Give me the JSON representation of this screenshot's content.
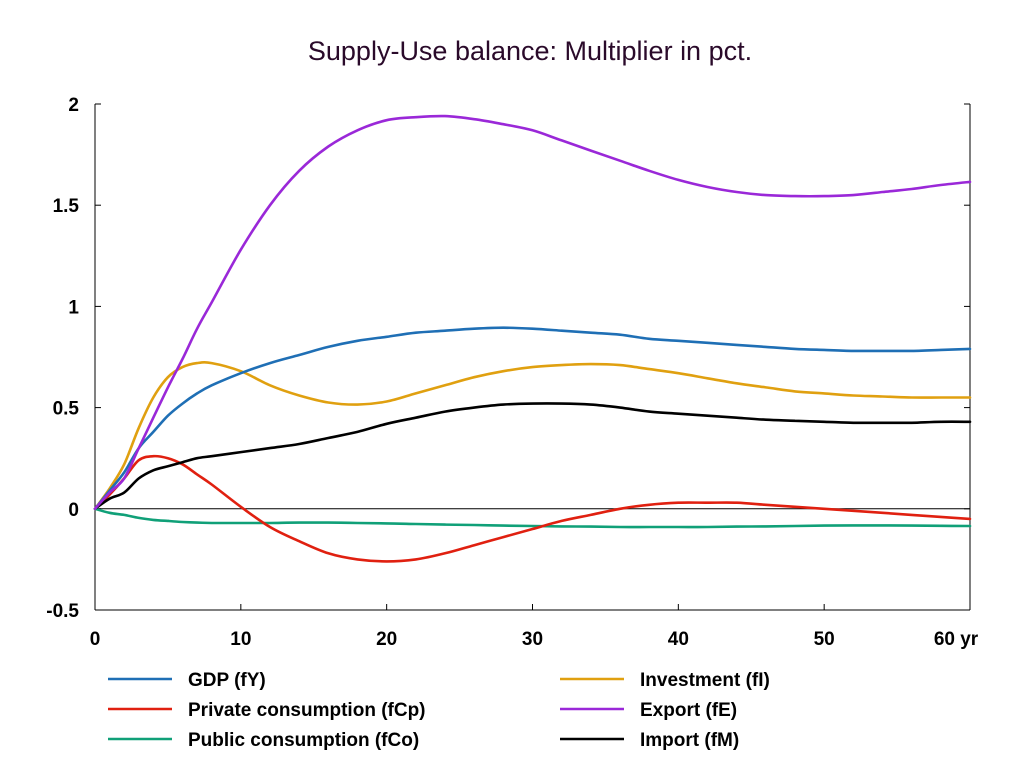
{
  "chart_data": {
    "type": "line",
    "title": "Supply-Use balance: Multiplier in pct.",
    "xlabel": "",
    "ylabel": "",
    "x_unit": "yr",
    "xlim": [
      0,
      60
    ],
    "ylim": [
      -0.5,
      2
    ],
    "x_ticks": [
      0,
      10,
      20,
      30,
      40,
      50,
      60
    ],
    "x_tick_labels": [
      "0",
      "10",
      "20",
      "30",
      "40",
      "50",
      "60 yr"
    ],
    "y_ticks": [
      -0.5,
      0,
      0.5,
      1,
      1.5,
      2
    ],
    "y_tick_labels": [
      "-0.5",
      "0",
      "0.5",
      "1",
      "1.5",
      "2"
    ],
    "grid": false,
    "legend_placement": "bottom, two columns",
    "x": [
      0,
      1,
      2,
      3,
      4,
      5,
      6,
      7,
      8,
      10,
      12,
      14,
      16,
      18,
      20,
      22,
      24,
      26,
      28,
      30,
      32,
      34,
      36,
      38,
      40,
      42,
      44,
      46,
      48,
      50,
      52,
      54,
      56,
      58,
      60
    ],
    "series": [
      {
        "name": "GDP (fY)",
        "color": "#1f6fb5",
        "values": [
          0,
          0.09,
          0.18,
          0.3,
          0.38,
          0.46,
          0.52,
          0.57,
          0.61,
          0.67,
          0.72,
          0.76,
          0.8,
          0.83,
          0.85,
          0.87,
          0.88,
          0.89,
          0.895,
          0.89,
          0.88,
          0.87,
          0.86,
          0.84,
          0.83,
          0.82,
          0.81,
          0.8,
          0.79,
          0.785,
          0.78,
          0.78,
          0.78,
          0.785,
          0.79
        ]
      },
      {
        "name": "Investment (fI)",
        "color": "#e0a010",
        "values": [
          0,
          0.1,
          0.22,
          0.4,
          0.55,
          0.65,
          0.7,
          0.72,
          0.72,
          0.68,
          0.61,
          0.56,
          0.525,
          0.515,
          0.53,
          0.57,
          0.61,
          0.65,
          0.68,
          0.7,
          0.71,
          0.715,
          0.71,
          0.69,
          0.67,
          0.645,
          0.62,
          0.6,
          0.58,
          0.57,
          0.56,
          0.555,
          0.55,
          0.55,
          0.55
        ]
      },
      {
        "name": "Private consumption (fCp)",
        "color": "#e02010",
        "values": [
          0,
          0.07,
          0.15,
          0.24,
          0.26,
          0.25,
          0.22,
          0.17,
          0.12,
          0.01,
          -0.09,
          -0.16,
          -0.22,
          -0.25,
          -0.26,
          -0.25,
          -0.22,
          -0.18,
          -0.14,
          -0.1,
          -0.06,
          -0.03,
          0,
          0.02,
          0.03,
          0.03,
          0.03,
          0.02,
          0.01,
          0,
          -0.01,
          -0.02,
          -0.03,
          -0.04,
          -0.05
        ]
      },
      {
        "name": "Export (fE)",
        "color": "#9a28d8",
        "values": [
          0,
          0.08,
          0.15,
          0.3,
          0.45,
          0.6,
          0.74,
          0.89,
          1.02,
          1.28,
          1.5,
          1.67,
          1.79,
          1.87,
          1.92,
          1.935,
          1.94,
          1.925,
          1.9,
          1.87,
          1.82,
          1.77,
          1.72,
          1.67,
          1.625,
          1.59,
          1.565,
          1.55,
          1.545,
          1.545,
          1.55,
          1.565,
          1.58,
          1.6,
          1.615
        ]
      },
      {
        "name": "Public consumption (fCo)",
        "color": "#10a078",
        "values": [
          0,
          -0.02,
          -0.03,
          -0.045,
          -0.055,
          -0.06,
          -0.065,
          -0.068,
          -0.07,
          -0.07,
          -0.07,
          -0.068,
          -0.068,
          -0.07,
          -0.072,
          -0.075,
          -0.078,
          -0.08,
          -0.083,
          -0.085,
          -0.087,
          -0.088,
          -0.09,
          -0.09,
          -0.09,
          -0.09,
          -0.088,
          -0.087,
          -0.085,
          -0.083,
          -0.082,
          -0.082,
          -0.083,
          -0.084,
          -0.085
        ]
      },
      {
        "name": "Import (fM)",
        "color": "#000000",
        "values": [
          0,
          0.05,
          0.08,
          0.15,
          0.19,
          0.21,
          0.23,
          0.25,
          0.26,
          0.28,
          0.3,
          0.32,
          0.35,
          0.38,
          0.42,
          0.45,
          0.48,
          0.5,
          0.515,
          0.52,
          0.52,
          0.515,
          0.5,
          0.48,
          0.47,
          0.46,
          0.45,
          0.44,
          0.435,
          0.43,
          0.425,
          0.425,
          0.425,
          0.43,
          0.43
        ]
      }
    ]
  }
}
